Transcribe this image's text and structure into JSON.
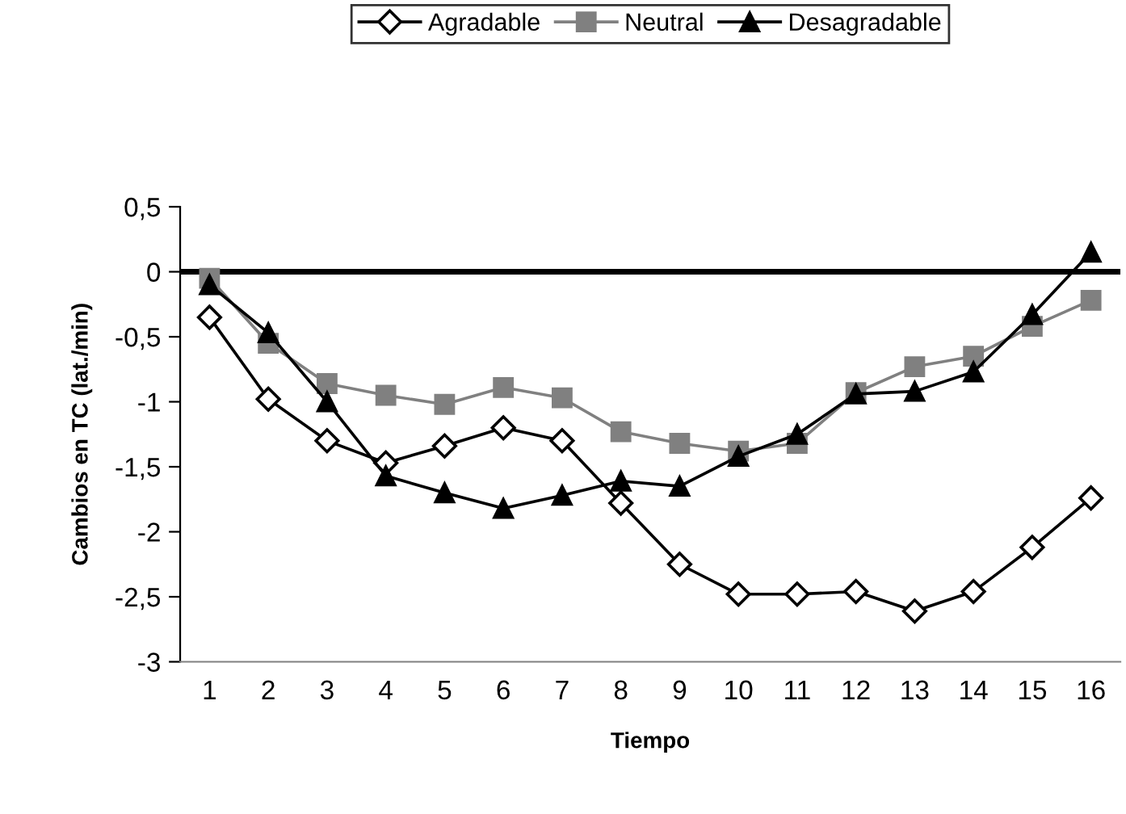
{
  "chart_data": {
    "type": "line",
    "xlabel": "Tiempo",
    "ylabel": "Cambios en TC (lat./min)",
    "categories": [
      "1",
      "2",
      "3",
      "4",
      "5",
      "6",
      "7",
      "8",
      "9",
      "10",
      "11",
      "12",
      "13",
      "14",
      "15",
      "16"
    ],
    "series": [
      {
        "name": "Agradable",
        "color": "#000000",
        "marker": "diamond",
        "values": [
          -0.35,
          -0.98,
          -1.3,
          -1.47,
          -1.34,
          -1.2,
          -1.3,
          -1.78,
          -2.25,
          -2.48,
          -2.48,
          -2.46,
          -2.61,
          -2.46,
          -2.12,
          -1.74
        ]
      },
      {
        "name": "Neutral",
        "color": "#808080",
        "marker": "square",
        "values": [
          -0.05,
          -0.55,
          -0.86,
          -0.95,
          -1.02,
          -0.89,
          -0.97,
          -1.23,
          -1.32,
          -1.38,
          -1.32,
          -0.93,
          -0.73,
          -0.65,
          -0.42,
          -0.22
        ]
      },
      {
        "name": "Desagradable",
        "color": "#000000",
        "marker": "triangle",
        "values": [
          -0.1,
          -0.47,
          -1.0,
          -1.57,
          -1.7,
          -1.82,
          -1.72,
          -1.61,
          -1.65,
          -1.42,
          -1.25,
          -0.94,
          -0.92,
          -0.77,
          -0.33,
          0.15
        ]
      }
    ],
    "ylim": [
      -3,
      0.5
    ],
    "yticks": [
      {
        "value": -3,
        "label": "-3"
      },
      {
        "value": -2.5,
        "label": "-2,5"
      },
      {
        "value": -2,
        "label": "-2"
      },
      {
        "value": -1.5,
        "label": "-1,5"
      },
      {
        "value": -1,
        "label": "-1"
      },
      {
        "value": -0.5,
        "label": "-0,5"
      },
      {
        "value": 0,
        "label": "0"
      },
      {
        "value": 0.5,
        "label": "0,5"
      }
    ],
    "ref_lines": [
      {
        "axis": "y",
        "value": 0,
        "color": "#000000"
      }
    ],
    "grid": false,
    "legend": "top",
    "line_style": "solid"
  }
}
